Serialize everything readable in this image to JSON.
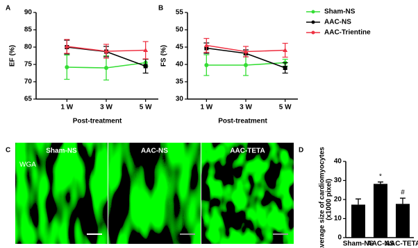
{
  "chart_data": [
    {
      "type": "line",
      "panel": "A",
      "ylabel": "EF (%)",
      "xlabel": "Post-treatment",
      "categories": [
        "1 W",
        "3 W",
        "5 W"
      ],
      "ylim": [
        65,
        90
      ],
      "yticks": [
        65,
        70,
        75,
        80,
        85,
        90
      ],
      "series": [
        {
          "color": "#33dd33",
          "marker": "circle",
          "values": [
            74.2,
            74.0,
            75.5
          ],
          "errors": [
            3.5,
            3.5,
            1.0
          ]
        },
        {
          "color": "#000000",
          "marker": "square",
          "values": [
            80.0,
            78.7,
            74.5
          ],
          "errors": [
            2.0,
            1.5,
            2.0
          ]
        },
        {
          "color": "#ee3344",
          "marker": "triangle",
          "values": [
            80.2,
            78.8,
            79.1
          ],
          "errors": [
            2.0,
            2.0,
            2.5
          ]
        }
      ]
    },
    {
      "type": "line",
      "panel": "B",
      "ylabel": "FS (%)",
      "xlabel": "Post-treatment",
      "categories": [
        "1 W",
        "3 W",
        "5 W"
      ],
      "ylim": [
        30,
        55
      ],
      "yticks": [
        30,
        35,
        40,
        45,
        50,
        55
      ],
      "series": [
        {
          "name": "Sham-NS",
          "color": "#33dd33",
          "marker": "circle",
          "values": [
            39.8,
            39.8,
            40.5
          ],
          "errors": [
            3.0,
            3.0,
            1.0
          ]
        },
        {
          "name": "AAC-NS",
          "color": "#000000",
          "marker": "square",
          "values": [
            44.7,
            43.2,
            39.0
          ],
          "errors": [
            1.5,
            1.0,
            1.5
          ]
        },
        {
          "name": "AAC-Trientine",
          "color": "#ee3344",
          "marker": "triangle",
          "values": [
            45.5,
            43.7,
            44.1
          ],
          "errors": [
            2.0,
            1.5,
            2.0
          ]
        }
      ],
      "legend": "right"
    },
    {
      "type": "image-grid",
      "panel": "C",
      "labels": [
        "Sham-NS",
        "AAC-NS",
        "AAC-TETA"
      ],
      "stain": "WGA"
    },
    {
      "type": "bar",
      "panel": "D",
      "ylabel": [
        "Average size of cardiomyocytes",
        "(x1000 pixel)"
      ],
      "categories": [
        "Sham-NS",
        "AAC-NS",
        "AAC-TETA"
      ],
      "values": [
        17.3,
        28.2,
        17.7
      ],
      "errors": [
        3.0,
        1.0,
        3.0
      ],
      "bar_annotations": [
        null,
        "*",
        "#"
      ],
      "color": "#000000",
      "ylim": [
        0,
        40
      ],
      "yticks": [
        0,
        10,
        20,
        30,
        40
      ]
    }
  ]
}
